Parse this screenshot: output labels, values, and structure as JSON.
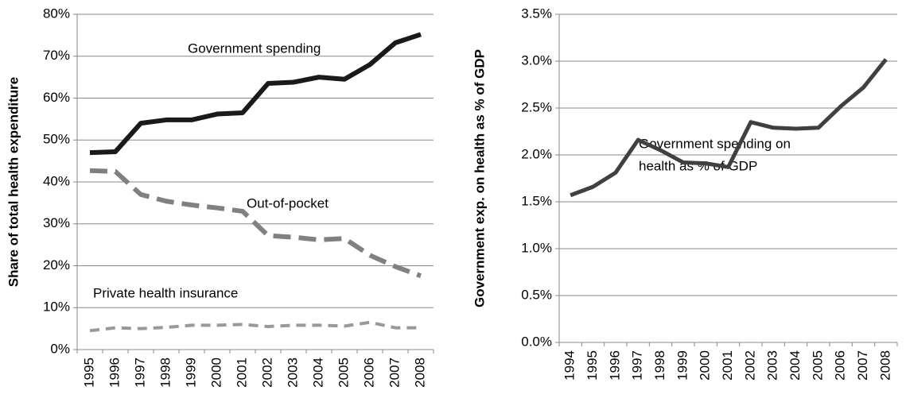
{
  "chart_data": [
    {
      "type": "line",
      "y_label": "Share of total health expenditure",
      "categories": [
        "1995",
        "1996",
        "1997",
        "1998",
        "1999",
        "2000",
        "2001",
        "2002",
        "2003",
        "2004",
        "2005",
        "2006",
        "2007",
        "2008"
      ],
      "series": [
        {
          "name": "Government spending",
          "color": "#1a1a1a",
          "dash": "solid",
          "values": [
            47,
            47.2,
            54,
            54.8,
            54.8,
            56.2,
            56.5,
            63.5,
            63.8,
            65,
            64.5,
            68,
            73.2,
            75.2
          ]
        },
        {
          "name": "Out-of-pocket",
          "color": "#808080",
          "dash": "dashed",
          "values": [
            42.7,
            42.5,
            37,
            35.4,
            34.5,
            33.8,
            33,
            27.2,
            26.8,
            26.2,
            26.5,
            22.5,
            19.8,
            17.6
          ]
        },
        {
          "name": "Private health insurance",
          "color": "#999999",
          "dash": "dashed",
          "values": [
            4.5,
            5.2,
            5,
            5.3,
            5.8,
            5.8,
            6,
            5.5,
            5.8,
            5.8,
            5.6,
            6.5,
            5.2,
            5.2
          ]
        }
      ],
      "ylim": [
        0,
        80
      ],
      "yticks": [
        {
          "value": 0,
          "label": "0%"
        },
        {
          "value": 10,
          "label": "10%"
        },
        {
          "value": 20,
          "label": "20%"
        },
        {
          "value": 30,
          "label": "30%"
        },
        {
          "value": 40,
          "label": "40%"
        },
        {
          "value": 50,
          "label": "50%"
        },
        {
          "value": 60,
          "label": "60%"
        },
        {
          "value": 70,
          "label": "70%"
        },
        {
          "value": 80,
          "label": "80%"
        }
      ],
      "grid": true
    },
    {
      "type": "line",
      "y_label": "Government exp. on health as % of GDP",
      "annotation": [
        "Government spending on",
        "health as % of GDP"
      ],
      "categories": [
        "1994",
        "1995",
        "1996",
        "1997",
        "1998",
        "1999",
        "2000",
        "2001",
        "2002",
        "2003",
        "2004",
        "2005",
        "2006",
        "2007",
        "2008"
      ],
      "series": [
        {
          "color": "#404040",
          "dash": "solid",
          "values": [
            1.57,
            1.66,
            1.81,
            2.16,
            2.05,
            1.92,
            1.91,
            1.87,
            2.35,
            2.29,
            2.28,
            2.29,
            2.52,
            2.72,
            3.02
          ]
        }
      ],
      "ylim": [
        0,
        3.5
      ],
      "yticks": [
        {
          "value": 0,
          "label": "0.0%"
        },
        {
          "value": 0.5,
          "label": "0.5%"
        },
        {
          "value": 1,
          "label": "1.0%"
        },
        {
          "value": 1.5,
          "label": "1.5%"
        },
        {
          "value": 2,
          "label": "2.0%"
        },
        {
          "value": 2.5,
          "label": "2.5%"
        },
        {
          "value": 3,
          "label": "3.0%"
        },
        {
          "value": 3.5,
          "label": "3.5%"
        }
      ],
      "grid": true
    }
  ]
}
